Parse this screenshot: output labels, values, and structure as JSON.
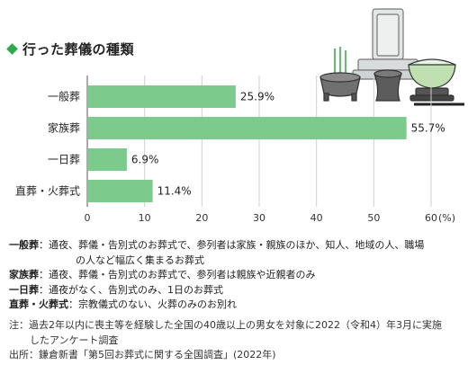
{
  "title": "行った葬儀の種類",
  "icons": [
    "diamond-icon",
    "tombstone-icon",
    "incense-burner-icon",
    "flower-vase-icon",
    "rice-bowl-icon"
  ],
  "colors": {
    "bar": "#7dcb8c",
    "accent": "#2fa84f",
    "grid": "#cfcfcf",
    "axis": "#555555"
  },
  "chart_data": {
    "type": "bar",
    "orientation": "horizontal",
    "categories": [
      "一般葬",
      "家族葬",
      "一日葬",
      "直葬・火葬式"
    ],
    "values": [
      25.9,
      55.7,
      6.9,
      11.4
    ],
    "value_labels": [
      "25.9%",
      "55.7%",
      "6.9%",
      "11.4%"
    ],
    "x_ticks": [
      0,
      10,
      20,
      30,
      40,
      50,
      60
    ],
    "x_unit": "(%)",
    "xlim": [
      0,
      60
    ],
    "grid": true
  },
  "definitions": [
    {
      "term": "一般葬",
      "lines": [
        "：通夜、葬儀・告別式のお葬式で、参列者は家族・親族のほか、知人、地域の人、職場",
        "の人など幅広く集まるお葬式"
      ]
    },
    {
      "term": "家族葬",
      "lines": [
        "：通夜、葬儀・告別式のお葬式で、参列者は親族や近親者のみ"
      ]
    },
    {
      "term": "一日葬",
      "lines": [
        "：通夜がなく、告別式のみ、1日のお葬式"
      ]
    },
    {
      "term": "直葬・火葬式",
      "lines": [
        "：宗教儀式のない、火葬のみのお別れ"
      ]
    }
  ],
  "notes": {
    "note_line1": "注：過去2年以内に喪主等を経験した全国の40歳以上の男女を対象に2022（令和4）年3月に実施",
    "note_line2": "したアンケート調査",
    "source": "出所：鎌倉新書「第5回お葬式に関する全国調査」(2022年)"
  }
}
